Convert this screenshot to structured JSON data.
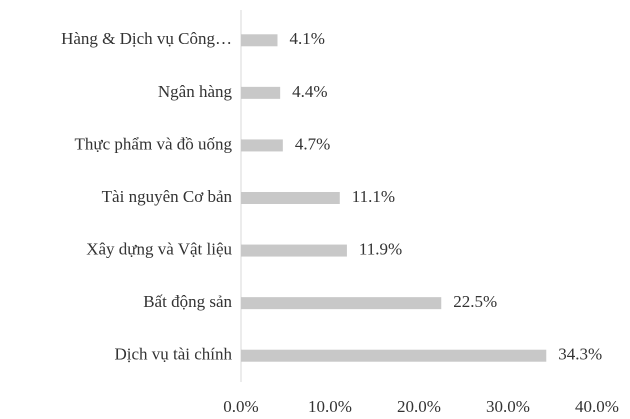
{
  "chart_data": {
    "type": "hbar",
    "categories": [
      "Hàng & Dịch vụ Công…",
      "Ngân hàng",
      "Thực phẩm và đồ uống",
      "Tài nguyên Cơ bản",
      "Xây dựng và Vật liệu",
      "Bất động sản",
      "Dịch vụ tài chính"
    ],
    "values": [
      4.1,
      4.4,
      4.7,
      11.1,
      11.9,
      22.5,
      34.3
    ],
    "value_labels": [
      "4.1%",
      "4.4%",
      "4.7%",
      "11.1%",
      "11.9%",
      "22.5%",
      "34.3%"
    ],
    "color": "#c8c8c8",
    "xlim": [
      0,
      40
    ],
    "xticks": [
      {
        "value": 0,
        "label": "0.0%"
      },
      {
        "value": 10,
        "label": "10.0%"
      },
      {
        "value": 20,
        "label": "20.0%"
      },
      {
        "value": 30,
        "label": "30.0%"
      },
      {
        "value": 40,
        "label": "40.0%"
      }
    ],
    "grid": false
  }
}
